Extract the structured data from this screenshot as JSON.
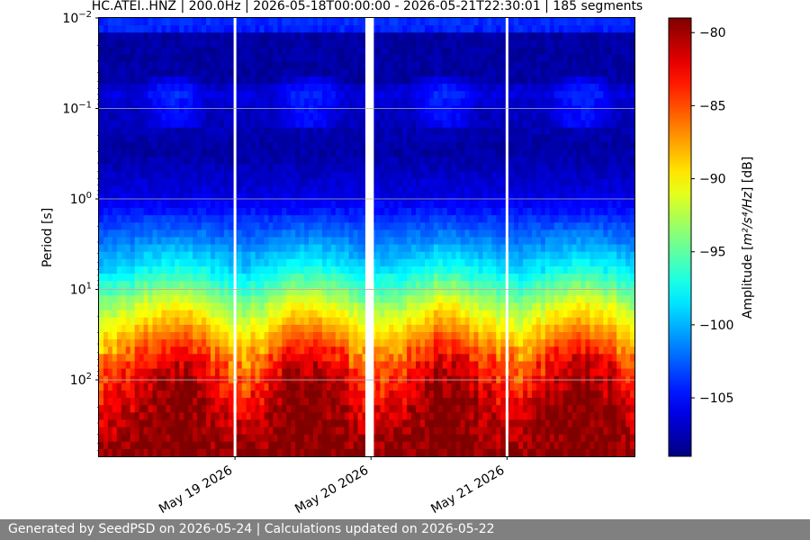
{
  "chart_data": {
    "type": "heatmap",
    "title": "HC.ATEI..HNZ | 200.0Hz | 2026-05-18T00:00:00 - 2026-05-21T22:30:01 | 185 segments",
    "ylabel": "Period [s]",
    "y_scale": "log",
    "y_inverted": true,
    "y_range": [
      0.01,
      700
    ],
    "y_ticks": [
      {
        "value": 0.01,
        "base": "10",
        "exp": "−2"
      },
      {
        "value": 0.1,
        "base": "10",
        "exp": "−1"
      },
      {
        "value": 1,
        "base": "10",
        "exp": "0"
      },
      {
        "value": 10,
        "base": "10",
        "exp": "1"
      },
      {
        "value": 100,
        "base": "10",
        "exp": "2"
      }
    ],
    "x_range": [
      "2026-05-18T00:00:00",
      "2026-05-21T22:30:01"
    ],
    "x_ticks": [
      {
        "value": "2026-05-19",
        "label": "May 19 2026"
      },
      {
        "value": "2026-05-20",
        "label": "May 20 2026"
      },
      {
        "value": "2026-05-21",
        "label": "May 21 2026"
      }
    ],
    "gaps": [
      {
        "start": "2026-05-18T23:55:00",
        "end": "2026-05-19T00:05:00"
      },
      {
        "start": "2026-05-19T23:00:00",
        "end": "2026-05-20T00:30:00"
      },
      {
        "start": "2026-05-20T23:55:00",
        "end": "2026-05-21T00:05:00"
      }
    ],
    "grid": true,
    "colormap": "jet",
    "colorbar": {
      "label_prefix": "Amplitude [",
      "label_math": "m²/s⁴/Hz",
      "label_suffix": "] [dB]",
      "range": [
        -109,
        -79
      ],
      "ticks": [
        -80,
        -85,
        -90,
        -95,
        -100,
        -105
      ]
    },
    "amplitude_profile": [
      {
        "period": 0.01,
        "db": -104
      },
      {
        "period": 0.013,
        "db": -104
      },
      {
        "period": 0.016,
        "db": -108
      },
      {
        "period": 0.05,
        "db": -108
      },
      {
        "period": 0.065,
        "db": -106
      },
      {
        "period": 0.1,
        "db": -107
      },
      {
        "period": 0.3,
        "db": -108
      },
      {
        "period": 1,
        "db": -106
      },
      {
        "period": 2.5,
        "db": -102
      },
      {
        "period": 6,
        "db": -98
      },
      {
        "period": 15,
        "db": -92
      },
      {
        "period": 30,
        "db": -88
      },
      {
        "period": 60,
        "db": -84
      },
      {
        "period": 150,
        "db": -81
      },
      {
        "period": 700,
        "db": -79
      }
    ]
  },
  "footer": {
    "text": "Generated by SeedPSD on 2026-05-24 | Calculations updated on 2026-05-22"
  }
}
